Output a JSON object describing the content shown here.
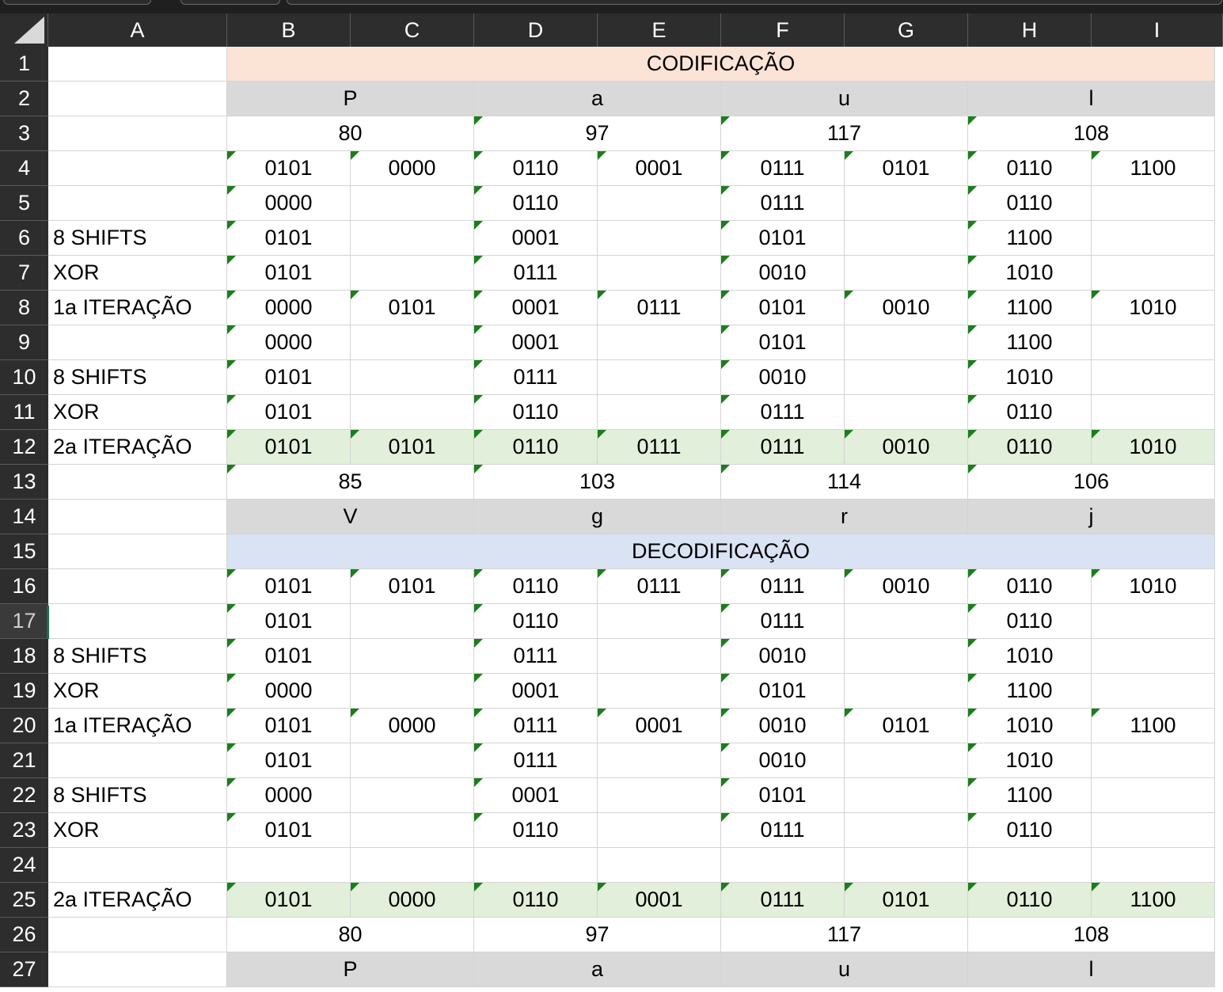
{
  "columns": [
    "A",
    "B",
    "C",
    "D",
    "E",
    "F",
    "G",
    "H",
    "I"
  ],
  "rows": [
    "1",
    "2",
    "3",
    "4",
    "5",
    "6",
    "7",
    "8",
    "9",
    "10",
    "11",
    "12",
    "13",
    "14",
    "15",
    "16",
    "17",
    "18",
    "19",
    "20",
    "21",
    "22",
    "23",
    "24",
    "25",
    "26",
    "27"
  ],
  "selected_row": "17",
  "colors": {
    "codificacao_fill": "#fbe3d6",
    "decodificacao_fill": "#dae3f3",
    "letter_fill": "#d9d9d9",
    "iteration_fill": "#e2efda",
    "error_indicator": "#1a7f1a",
    "header_bg": "#2d2d2d"
  },
  "labels": {
    "r6": "8 SHIFTS",
    "r7": "XOR",
    "r8": "1a ITERAÇÃO",
    "r10": "8 SHIFTS",
    "r11": "XOR",
    "r12": "2a ITERAÇÃO",
    "r18": "8 SHIFTS",
    "r19": "XOR",
    "r20": "1a ITERAÇÃO",
    "r22": "8 SHIFTS",
    "r23": "XOR",
    "r25": "2a ITERAÇÃO"
  },
  "banners": {
    "codificacao": "CODIFICAÇÃO",
    "decodificacao": "DECODIFICAÇÃO"
  },
  "plain_letters": [
    "P",
    "a",
    "u",
    "l"
  ],
  "plain_codes": [
    "80",
    "97",
    "117",
    "108"
  ],
  "cipher_codes": [
    "85",
    "103",
    "114",
    "106"
  ],
  "cipher_letters": [
    "V",
    "g",
    "r",
    "j"
  ],
  "grid": {
    "r4": [
      "0101",
      "0000",
      "0110",
      "0001",
      "0111",
      "0101",
      "0110",
      "1100"
    ],
    "r5": [
      "0000",
      "",
      "0110",
      "",
      "0111",
      "",
      "0110",
      ""
    ],
    "r6": [
      "0101",
      "",
      "0001",
      "",
      "0101",
      "",
      "1100",
      ""
    ],
    "r7": [
      "0101",
      "",
      "0111",
      "",
      "0010",
      "",
      "1010",
      ""
    ],
    "r8": [
      "0000",
      "0101",
      "0001",
      "0111",
      "0101",
      "0010",
      "1100",
      "1010"
    ],
    "r9": [
      "0000",
      "",
      "0001",
      "",
      "0101",
      "",
      "1100",
      ""
    ],
    "r10": [
      "0101",
      "",
      "0111",
      "",
      "0010",
      "",
      "1010",
      ""
    ],
    "r11": [
      "0101",
      "",
      "0110",
      "",
      "0111",
      "",
      "0110",
      ""
    ],
    "r12": [
      "0101",
      "0101",
      "0110",
      "0111",
      "0111",
      "0010",
      "0110",
      "1010"
    ],
    "r16": [
      "0101",
      "0101",
      "0110",
      "0111",
      "0111",
      "0010",
      "0110",
      "1010"
    ],
    "r17": [
      "0101",
      "",
      "0110",
      "",
      "0111",
      "",
      "0110",
      ""
    ],
    "r18": [
      "0101",
      "",
      "0111",
      "",
      "0010",
      "",
      "1010",
      ""
    ],
    "r19": [
      "0000",
      "",
      "0001",
      "",
      "0101",
      "",
      "1100",
      ""
    ],
    "r20": [
      "0101",
      "0000",
      "0111",
      "0001",
      "0010",
      "0101",
      "1010",
      "1100"
    ],
    "r21": [
      "0101",
      "",
      "0111",
      "",
      "0010",
      "",
      "1010",
      ""
    ],
    "r22": [
      "0000",
      "",
      "0001",
      "",
      "0101",
      "",
      "1100",
      ""
    ],
    "r23": [
      "0101",
      "",
      "0110",
      "",
      "0111",
      "",
      "0110",
      ""
    ],
    "r25": [
      "0101",
      "0000",
      "0110",
      "0001",
      "0111",
      "0101",
      "0110",
      "1100"
    ]
  },
  "decoded_codes": [
    "80",
    "97",
    "117",
    "108"
  ],
  "decoded_letters": [
    "P",
    "a",
    "u",
    "l"
  ]
}
